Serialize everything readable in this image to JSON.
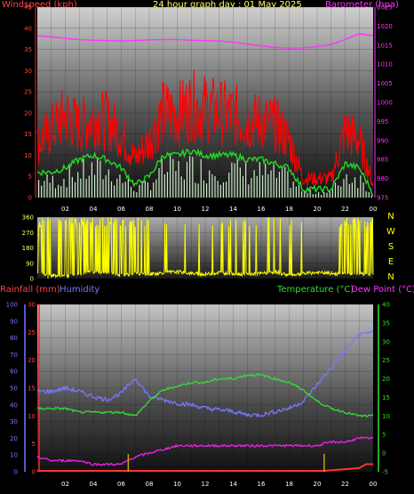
{
  "header": {
    "wind_label": "Windspeed (kph)",
    "title": "24 hour graph day : 01 May 2025",
    "baro_label": "Barometer (hpa)"
  },
  "lower_header": {
    "rain_label": "Rainfall (mm)",
    "humidity_label": "Humidity",
    "temp_label": "Temperature (°C)",
    "dew_label": "Dew Point (°C)"
  },
  "colors": {
    "wind": "#ff0000",
    "wind_avg": "#22dd22",
    "gust_fill": "#cceecc",
    "barometer": "#ff33ff",
    "direction": "#ffff00",
    "humidity": "#7777ff",
    "temperature": "#33dd33",
    "dewpoint": "#ee22ee",
    "rain": "#ff3333",
    "rain_rate": "#ccaa00",
    "header_left": "#ff4444",
    "header_title": "#ffff66"
  },
  "chart_data": [
    {
      "type": "line",
      "name": "wind-baro",
      "x_ticks": [
        "02",
        "04",
        "06",
        "08",
        "10",
        "12",
        "14",
        "16",
        "18",
        "20",
        "22",
        "00"
      ],
      "y_left": {
        "label": "Windspeed (kph)",
        "ticks": [
          0,
          5,
          10,
          15,
          20,
          25,
          30,
          35,
          40,
          45
        ],
        "lim": [
          0,
          45
        ]
      },
      "y_right": {
        "label": "Barometer (hpa)",
        "ticks": [
          975,
          980,
          985,
          990,
          995,
          1000,
          1005,
          1010,
          1015,
          1020,
          1025
        ],
        "lim": [
          975,
          1025
        ]
      },
      "series": [
        {
          "key": "wind_max",
          "hours": [
            0,
            1,
            2,
            3,
            4,
            5,
            6,
            7,
            8,
            9,
            10,
            11,
            12,
            13,
            14,
            15,
            16,
            17,
            18,
            19,
            20,
            21,
            22,
            23,
            24
          ],
          "values": [
            17,
            21,
            26,
            22,
            25,
            24,
            20,
            12,
            18,
            27,
            26,
            29,
            28,
            27,
            26,
            24,
            24,
            23,
            18,
            6,
            6,
            6,
            21,
            18,
            4
          ]
        },
        {
          "key": "wind_avg",
          "hours": [
            0,
            1,
            2,
            3,
            4,
            5,
            6,
            7,
            8,
            9,
            10,
            11,
            12,
            13,
            14,
            15,
            16,
            17,
            18,
            19,
            20,
            21,
            22,
            23,
            24
          ],
          "values": [
            6,
            6,
            7,
            9,
            10,
            9,
            7,
            3,
            5,
            10,
            10,
            11,
            10,
            10,
            10,
            9,
            9,
            8,
            7,
            2,
            2,
            2,
            8,
            7,
            1
          ]
        },
        {
          "key": "barometer",
          "hours": [
            0,
            1,
            2,
            3,
            4,
            5,
            6,
            7,
            8,
            9,
            10,
            11,
            12,
            13,
            14,
            15,
            16,
            17,
            18,
            19,
            20,
            21,
            22,
            23,
            24
          ],
          "values": [
            1017.5,
            1017.2,
            1016.8,
            1016.5,
            1016.3,
            1016.2,
            1016.1,
            1016.2,
            1016.4,
            1016.5,
            1016.5,
            1016.3,
            1016.2,
            1016.1,
            1015.8,
            1015.3,
            1014.8,
            1014.4,
            1014.2,
            1014.3,
            1014.6,
            1015.2,
            1016.5,
            1018.0,
            1017.5
          ]
        }
      ],
      "grid": true
    },
    {
      "type": "line",
      "name": "wind-direction",
      "y_ticks": [
        0,
        90,
        180,
        270,
        360
      ],
      "y_lim": [
        0,
        360
      ],
      "compass": [
        "N",
        "W",
        "S",
        "E",
        "N"
      ],
      "series": [
        {
          "key": "direction",
          "hours": [
            0,
            1,
            2,
            3,
            4,
            5,
            6,
            7,
            8,
            9,
            10,
            11,
            12,
            13,
            14,
            15,
            16,
            17,
            18,
            19,
            20,
            21,
            22,
            23,
            24
          ],
          "values": [
            30,
            20,
            15,
            25,
            40,
            35,
            20,
            30,
            25,
            35,
            40,
            30,
            25,
            35,
            30,
            25,
            30,
            40,
            20,
            30,
            35,
            30,
            25,
            30,
            20
          ]
        }
      ],
      "grid": true
    },
    {
      "type": "line",
      "name": "temp-humidity-rain",
      "x_ticks": [
        "02",
        "04",
        "06",
        "08",
        "10",
        "12",
        "14",
        "16",
        "18",
        "20",
        "22",
        "00"
      ],
      "y_humidity": {
        "ticks": [
          0,
          10,
          20,
          30,
          40,
          50,
          60,
          70,
          80,
          90,
          100
        ],
        "lim": [
          0,
          100
        ]
      },
      "y_rain": {
        "ticks": [
          0,
          5,
          10,
          15,
          20,
          25,
          30
        ],
        "lim": [
          0,
          30
        ]
      },
      "y_temp": {
        "ticks": [
          -5,
          0,
          5,
          10,
          15,
          20,
          25,
          30,
          35,
          40
        ],
        "lim": [
          -5,
          40
        ]
      },
      "series": [
        {
          "key": "humidity",
          "hours": [
            0,
            1,
            2,
            3,
            4,
            5,
            6,
            7,
            8,
            9,
            10,
            11,
            12,
            13,
            14,
            15,
            16,
            17,
            18,
            19,
            20,
            21,
            22,
            23,
            24
          ],
          "values": [
            48,
            48,
            50,
            48,
            45,
            43,
            47,
            56,
            45,
            43,
            41,
            40,
            38,
            37,
            36,
            34,
            34,
            36,
            38,
            42,
            52,
            62,
            72,
            82,
            84
          ]
        },
        {
          "key": "temperature",
          "hours": [
            0,
            1,
            2,
            3,
            4,
            5,
            6,
            7,
            8,
            9,
            10,
            11,
            12,
            13,
            14,
            15,
            16,
            17,
            18,
            19,
            20,
            21,
            22,
            23,
            24
          ],
          "values": [
            12,
            12,
            12,
            11,
            11,
            11,
            11,
            10,
            14,
            17,
            18,
            19,
            19,
            20,
            20,
            21,
            21,
            20,
            19,
            17,
            14,
            12,
            11,
            10,
            10
          ]
        },
        {
          "key": "dewpoint",
          "hours": [
            0,
            1,
            2,
            3,
            4,
            5,
            6,
            7,
            8,
            9,
            10,
            11,
            12,
            13,
            14,
            15,
            16,
            17,
            18,
            19,
            20,
            21,
            22,
            23,
            24
          ],
          "values": [
            -1,
            -2,
            -2,
            -2,
            -3,
            -3,
            -3,
            -1,
            0,
            1,
            2,
            2,
            2,
            2,
            2,
            2,
            2,
            2,
            2,
            2,
            2,
            3,
            3,
            4,
            4
          ]
        },
        {
          "key": "rain",
          "hours": [
            0,
            6.5,
            20.5,
            23,
            23.5,
            24
          ],
          "values": [
            0,
            0,
            0,
            0.5,
            1.2,
            1.2
          ]
        },
        {
          "key": "rain_rate",
          "hours": [
            6.5,
            20.5
          ],
          "values": [
            3.2,
            3.2
          ]
        }
      ],
      "grid": true
    }
  ]
}
